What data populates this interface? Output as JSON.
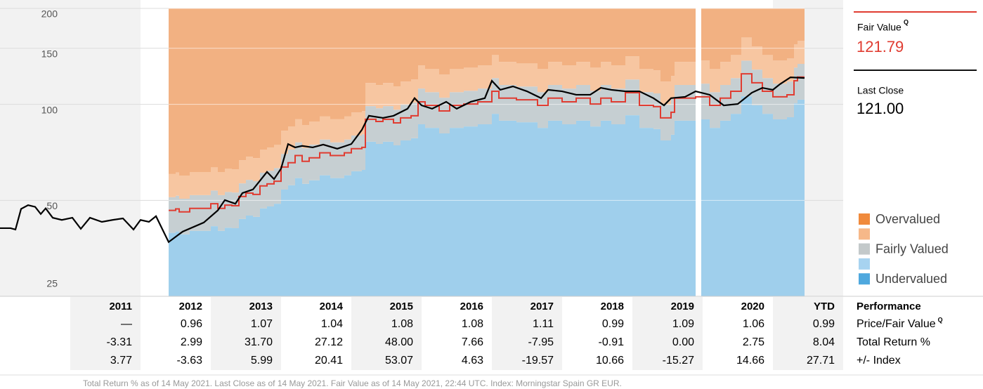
{
  "chart_data": {
    "type": "line",
    "log_scale": true,
    "grid": true,
    "xlim": [
      2010,
      2022
    ],
    "ylim": [
      25,
      200
    ],
    "yticks": [
      25,
      50,
      100,
      150,
      200
    ],
    "price": {
      "color": "#000000",
      "x": [
        2010.0,
        2010.15,
        2010.22,
        2010.3,
        2010.4,
        2010.5,
        2010.58,
        2010.65,
        2010.75,
        2010.88,
        2011.03,
        2011.15,
        2011.28,
        2011.45,
        2011.6,
        2011.75,
        2011.9,
        2012.0,
        2012.12,
        2012.22,
        2012.4,
        2012.6,
        2012.9,
        2013.1,
        2013.2,
        2013.35,
        2013.45,
        2013.6,
        2013.8,
        2013.9,
        2014.0,
        2014.1,
        2014.2,
        2014.3,
        2014.45,
        2014.6,
        2014.8,
        2015.0,
        2015.15,
        2015.25,
        2015.45,
        2015.6,
        2015.8,
        2015.9,
        2016.0,
        2016.15,
        2016.35,
        2016.5,
        2016.7,
        2016.9,
        2017.0,
        2017.12,
        2017.3,
        2017.5,
        2017.7,
        2017.8,
        2018.0,
        2018.2,
        2018.4,
        2018.55,
        2018.7,
        2018.9,
        2019.1,
        2019.3,
        2019.45,
        2019.55,
        2019.75,
        2019.9,
        2020.1,
        2020.3,
        2020.5,
        2020.7,
        2020.85,
        2021.0,
        2021.1,
        2021.25,
        2021.45
      ],
      "values": [
        40.9,
        40.9,
        40.5,
        47.0,
        48.3,
        47.7,
        45.3,
        47.2,
        44.1,
        43.4,
        44.1,
        40.7,
        44.1,
        42.8,
        43.4,
        43.9,
        40.5,
        43.4,
        42.8,
        44.6,
        37.0,
        39.9,
        42.6,
        46.5,
        50.1,
        48.8,
        52.7,
        54.1,
        61.4,
        58.3,
        62.9,
        75.1,
        73.3,
        74.1,
        73.3,
        74.8,
        72.6,
        75.1,
        83.2,
        92.1,
        90.7,
        92.1,
        96.9,
        104.6,
        99.3,
        96.9,
        101.9,
        96.9,
        101.9,
        104.6,
        118.6,
        111.1,
        113.9,
        109.9,
        104.6,
        111.1,
        109.9,
        107.2,
        107.2,
        112.7,
        111.1,
        109.9,
        109.9,
        104.6,
        99.3,
        104.6,
        105.6,
        109.9,
        107.2,
        99.3,
        100.3,
        108.8,
        112.7,
        111.1,
        115.7,
        121.6,
        121.0
      ]
    },
    "fair_value": {
      "color": "#e03c31",
      "x": [
        2012.4,
        2012.5,
        2012.55,
        2012.7,
        2013.0,
        2013.1,
        2013.2,
        2013.3,
        2013.4,
        2013.5,
        2013.6,
        2013.7,
        2013.8,
        2013.9,
        2014.0,
        2014.1,
        2014.2,
        2014.3,
        2014.4,
        2014.55,
        2014.7,
        2014.9,
        2015.0,
        2015.15,
        2015.2,
        2015.35,
        2015.45,
        2015.6,
        2015.7,
        2015.85,
        2015.95,
        2016.05,
        2016.25,
        2016.4,
        2016.6,
        2016.8,
        2017.0,
        2017.1,
        2017.35,
        2017.65,
        2017.8,
        2018.0,
        2018.2,
        2018.4,
        2018.55,
        2018.7,
        2018.9,
        2019.1,
        2019.3,
        2019.4,
        2019.55,
        2019.6,
        2019.9,
        2020.1,
        2020.25,
        2020.4,
        2020.55,
        2020.7,
        2020.85,
        2021.0,
        2021.2,
        2021.3,
        2021.35
      ],
      "values": [
        46.5,
        47.0,
        46.0,
        47.2,
        48.8,
        47.2,
        48.3,
        48.1,
        51.4,
        52.7,
        52.2,
        55.5,
        56.3,
        57.4,
        63.6,
        65.6,
        69.1,
        66.3,
        68.0,
        70.5,
        69.1,
        70.5,
        72.6,
        73.3,
        89.8,
        88.4,
        89.8,
        87.5,
        90.7,
        92.1,
        101.9,
        99.3,
        95.4,
        99.3,
        100.3,
        101.9,
        109.9,
        104.6,
        103.4,
        99.3,
        104.6,
        101.9,
        104.6,
        100.3,
        104.6,
        101.9,
        108.8,
        99.3,
        98.4,
        90.7,
        94.5,
        104.6,
        105.6,
        99.3,
        104.6,
        109.9,
        124.7,
        116.9,
        109.9,
        105.6,
        107.2,
        118.6,
        121.79
      ]
    },
    "band_colors": [
      "#9fcfec",
      "#c6cfd2",
      "#f7c6a1",
      "#f2b182"
    ],
    "legend": [
      {
        "label": "Overvalued",
        "color": "#f08a3c"
      },
      {
        "color": "#f6b889"
      },
      {
        "label": "Fairly Valued",
        "color": "#c3c9ca"
      },
      {
        "color": "#a7d3f0"
      },
      {
        "label": "Undervalued",
        "color": "#4fa8de"
      }
    ]
  },
  "summary": {
    "fair_value_label": "Fair Value",
    "rating_mark": "Q",
    "fair_value": "121.79",
    "last_close_label": "Last Close",
    "last_close": "121.00"
  },
  "table": {
    "title": "Performance",
    "columns": [
      "2011",
      "2012",
      "2013",
      "2014",
      "2015",
      "2016",
      "2017",
      "2018",
      "2019",
      "2020",
      "YTD"
    ],
    "rows": [
      {
        "label": "Price/Fair Value",
        "mark": "Q",
        "values": [
          "—",
          "0.96",
          "1.07",
          "1.04",
          "1.08",
          "1.08",
          "1.11",
          "0.99",
          "1.09",
          "1.06",
          "0.99"
        ]
      },
      {
        "label": "Total Return %",
        "values": [
          "-3.31",
          "2.99",
          "31.70",
          "27.12",
          "48.00",
          "7.66",
          "-7.95",
          "-0.91",
          "0.00",
          "2.75",
          "8.04"
        ]
      },
      {
        "label": "+/- Index",
        "values": [
          "3.77",
          "-3.63",
          "5.99",
          "20.41",
          "53.07",
          "4.63",
          "-19.57",
          "10.66",
          "-15.27",
          "14.66",
          "27.71"
        ]
      }
    ]
  },
  "footnote": "Total Return % as of 14 May 2021. Last Close as of 14 May 2021. Fair Value as of 14 May 2021, 22:44 UTC. Index: Morningstar Spain GR EUR."
}
